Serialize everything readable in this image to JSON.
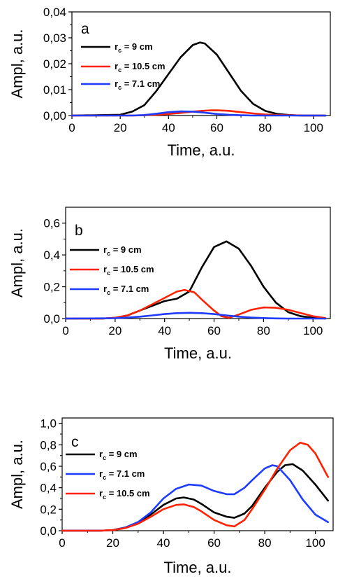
{
  "chart_data": [
    {
      "type": "line",
      "panel_label": "a",
      "xlabel": "Time, a.u.",
      "ylabel": "Ampl, a.u.",
      "xlim": [
        0,
        107
      ],
      "ylim": [
        0,
        0.04
      ],
      "xticks": [
        "0",
        "20",
        "40",
        "60",
        "80",
        "100"
      ],
      "yticks": [
        "0,00",
        "0,01",
        "0,02",
        "0,03",
        "0,04"
      ],
      "series": [
        {
          "name": "r_c = 9 cm",
          "color": "#000000",
          "x": [
            0,
            20,
            25,
            30,
            35,
            40,
            45,
            50,
            53,
            55,
            60,
            65,
            70,
            75,
            80,
            85,
            90,
            95,
            100,
            105
          ],
          "y": [
            0,
            0.0003,
            0.0015,
            0.004,
            0.0095,
            0.016,
            0.0225,
            0.0272,
            0.0282,
            0.0278,
            0.0235,
            0.0165,
            0.0095,
            0.0045,
            0.0018,
            0.0006,
            0.0002,
            0,
            0,
            0
          ]
        },
        {
          "name": "r_c = 10.5 cm",
          "color": "#ff2200",
          "x": [
            0,
            25,
            30,
            35,
            40,
            45,
            50,
            55,
            58,
            60,
            65,
            70,
            75,
            80,
            85,
            90,
            95,
            100,
            105
          ],
          "y": [
            0,
            0,
            0.0001,
            0.0003,
            0.0006,
            0.001,
            0.0015,
            0.0019,
            0.002,
            0.002,
            0.0018,
            0.0013,
            0.0008,
            0.0004,
            0.0002,
            0.0001,
            0,
            0,
            0
          ]
        },
        {
          "name": "r_c = 7.1 cm",
          "color": "#1e3cff",
          "x": [
            0,
            25,
            30,
            35,
            40,
            45,
            50,
            55,
            60,
            65,
            70,
            75,
            80,
            85,
            90,
            95,
            100,
            105
          ],
          "y": [
            0,
            0,
            0.0002,
            0.0007,
            0.0013,
            0.0016,
            0.0015,
            0.0011,
            0.0006,
            0.0003,
            0.0001,
            0,
            0,
            0,
            0,
            0,
            0,
            0
          ]
        }
      ]
    },
    {
      "type": "line",
      "panel_label": "b",
      "xlabel": "Time, a.u.",
      "ylabel": "Ampl, a.u.",
      "xlim": [
        0,
        107
      ],
      "ylim": [
        0,
        0.7
      ],
      "xticks": [
        "0",
        "20",
        "40",
        "60",
        "80",
        "100"
      ],
      "yticks": [
        "0,0",
        "0,2",
        "0,4",
        "0,6"
      ],
      "series": [
        {
          "name": "r_c = 9 cm",
          "color": "#000000",
          "x": [
            0,
            15,
            20,
            25,
            30,
            35,
            40,
            45,
            50,
            55,
            60,
            65,
            70,
            75,
            80,
            85,
            90,
            95,
            100,
            105
          ],
          "y": [
            0,
            0,
            0.005,
            0.02,
            0.05,
            0.08,
            0.11,
            0.125,
            0.17,
            0.32,
            0.45,
            0.485,
            0.44,
            0.33,
            0.2,
            0.1,
            0.04,
            0.015,
            0.005,
            0
          ]
        },
        {
          "name": "r_c = 10.5 cm",
          "color": "#ff2200",
          "x": [
            0,
            15,
            20,
            25,
            30,
            35,
            40,
            45,
            48,
            52,
            55,
            60,
            63,
            66,
            70,
            75,
            80,
            85,
            90,
            95,
            100,
            105
          ],
          "y": [
            0,
            0,
            0.005,
            0.02,
            0.05,
            0.09,
            0.13,
            0.17,
            0.18,
            0.165,
            0.12,
            0.05,
            0.015,
            0.005,
            0.025,
            0.055,
            0.07,
            0.068,
            0.055,
            0.035,
            0.015,
            0.003
          ]
        },
        {
          "name": "r_c = 7.1 cm",
          "color": "#1e3cff",
          "x": [
            0,
            20,
            25,
            30,
            35,
            40,
            45,
            50,
            55,
            60,
            65,
            70,
            75,
            80,
            85,
            90,
            95,
            100,
            105
          ],
          "y": [
            0,
            0.002,
            0.006,
            0.012,
            0.02,
            0.028,
            0.034,
            0.036,
            0.034,
            0.028,
            0.02,
            0.012,
            0.006,
            0.003,
            0.001,
            0,
            0,
            0,
            0
          ]
        }
      ]
    },
    {
      "type": "line",
      "panel_label": "c",
      "xlabel": "Time, a.u.",
      "ylabel": "Ampl, a.u.",
      "xlim": [
        0,
        107
      ],
      "ylim": [
        0,
        1.05
      ],
      "xticks": [
        "0",
        "20",
        "40",
        "60",
        "80",
        "100"
      ],
      "yticks": [
        "0,0",
        "0,2",
        "0,4",
        "0,6",
        "0,8",
        "1,0"
      ],
      "series": [
        {
          "name": "r_c = 9 cm",
          "color": "#000000",
          "x": [
            0,
            15,
            20,
            25,
            30,
            35,
            40,
            45,
            48,
            52,
            55,
            60,
            65,
            68,
            72,
            75,
            80,
            85,
            88,
            91,
            95,
            100,
            105
          ],
          "y": [
            0,
            0,
            0.005,
            0.03,
            0.08,
            0.15,
            0.24,
            0.3,
            0.31,
            0.29,
            0.25,
            0.17,
            0.13,
            0.12,
            0.16,
            0.23,
            0.4,
            0.55,
            0.61,
            0.62,
            0.56,
            0.43,
            0.28
          ]
        },
        {
          "name": "r_c = 7.1 cm",
          "color": "#1e3cff",
          "x": [
            0,
            15,
            20,
            25,
            30,
            35,
            40,
            45,
            50,
            55,
            60,
            65,
            68,
            72,
            75,
            80,
            83,
            85,
            90,
            95,
            100,
            105
          ],
          "y": [
            0,
            0,
            0.005,
            0.03,
            0.08,
            0.17,
            0.3,
            0.39,
            0.43,
            0.42,
            0.37,
            0.34,
            0.34,
            0.4,
            0.47,
            0.58,
            0.61,
            0.6,
            0.47,
            0.29,
            0.15,
            0.08
          ]
        },
        {
          "name": "r_c = 10.5 cm",
          "color": "#ff2200",
          "x": [
            0,
            15,
            20,
            25,
            30,
            35,
            40,
            45,
            48,
            52,
            55,
            60,
            65,
            68,
            72,
            75,
            80,
            85,
            90,
            94,
            97,
            100,
            105
          ],
          "y": [
            0,
            0,
            0.005,
            0.025,
            0.065,
            0.13,
            0.2,
            0.24,
            0.245,
            0.22,
            0.18,
            0.1,
            0.05,
            0.04,
            0.1,
            0.2,
            0.38,
            0.58,
            0.75,
            0.82,
            0.8,
            0.72,
            0.5
          ]
        }
      ]
    }
  ]
}
